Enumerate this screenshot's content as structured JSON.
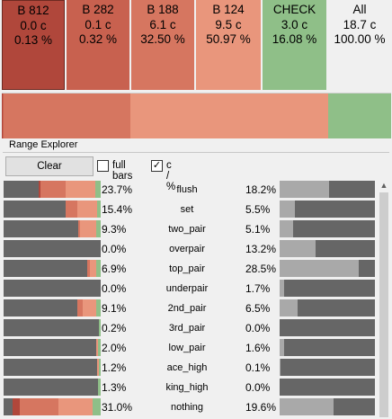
{
  "colors": {
    "b812": "#b0473b",
    "b282": "#c8614f",
    "b188": "#d67660",
    "b124": "#e9967c",
    "check": "#8fbf88",
    "all": "#f0f0f0",
    "dark_bar": "#666666",
    "light_bar": "#a9a9a9"
  },
  "actions": [
    {
      "name": "B 812",
      "value": "0.0 c",
      "pct": "0.13 %",
      "color": "#b0473b",
      "fg": "#000000"
    },
    {
      "name": "B 282",
      "value": "0.1 c",
      "pct": "0.32 %",
      "color": "#c8614f",
      "fg": "#000000"
    },
    {
      "name": "B 188",
      "value": "6.1 c",
      "pct": "32.50 %",
      "color": "#d67660",
      "fg": "#000000"
    },
    {
      "name": "B 124",
      "value": "9.5 c",
      "pct": "50.97 %",
      "color": "#e9967c",
      "fg": "#000000"
    },
    {
      "name": "CHECK",
      "value": "3.0 c",
      "pct": "16.08 %",
      "color": "#8fbf88",
      "fg": "#000000"
    },
    {
      "name": "All",
      "value": "18.7 c",
      "pct": "100.00 %",
      "color": "#f0f0f0",
      "fg": "#000000"
    }
  ],
  "composite": [
    {
      "action": "B 812",
      "fraction": 0.0013,
      "color": "#b0473b"
    },
    {
      "action": "B 282",
      "fraction": 0.0032,
      "color": "#c8614f"
    },
    {
      "action": "B 188",
      "fraction": 0.325,
      "color": "#d67660"
    },
    {
      "action": "B 124",
      "fraction": 0.5097,
      "color": "#e9967c"
    },
    {
      "action": "CHECK",
      "fraction": 0.1608,
      "color": "#8fbf88"
    }
  ],
  "range_explorer": {
    "title": "Range Explorer",
    "clear_label": "Clear",
    "full_bars": {
      "label": "full bars",
      "checked": false
    },
    "c_pct": {
      "label": "c / %",
      "checked": true
    }
  },
  "hands": [
    {
      "name": "flush",
      "left_pct": "23.7%",
      "right_pct": "18.2%",
      "left_frac": 0.237,
      "right_frac": 0.52,
      "segments": [
        {
          "color": "#8fbf88",
          "frac": 0.06
        },
        {
          "color": "#e9967c",
          "frac": 0.3
        },
        {
          "color": "#d67660",
          "frac": 0.26
        },
        {
          "color": "#b0473b",
          "frac": 0.02
        }
      ]
    },
    {
      "name": "set",
      "left_pct": "15.4%",
      "right_pct": "5.5%",
      "left_frac": 0.154,
      "right_frac": 0.16,
      "segments": [
        {
          "color": "#8fbf88",
          "frac": 0.04
        },
        {
          "color": "#e9967c",
          "frac": 0.2
        },
        {
          "color": "#d67660",
          "frac": 0.12
        }
      ]
    },
    {
      "name": "two_pair",
      "left_pct": "9.3%",
      "right_pct": "5.1%",
      "left_frac": 0.093,
      "right_frac": 0.14,
      "segments": [
        {
          "color": "#8fbf88",
          "frac": 0.05
        },
        {
          "color": "#e9967c",
          "frac": 0.16
        },
        {
          "color": "#d67660",
          "frac": 0.02
        }
      ]
    },
    {
      "name": "overpair",
      "left_pct": "0.0%",
      "right_pct": "13.2%",
      "left_frac": 0.0,
      "right_frac": 0.38,
      "segments": []
    },
    {
      "name": "top_pair",
      "left_pct": "6.9%",
      "right_pct": "28.5%",
      "left_frac": 0.069,
      "right_frac": 0.83,
      "segments": [
        {
          "color": "#8fbf88",
          "frac": 0.05
        },
        {
          "color": "#e9967c",
          "frac": 0.06
        },
        {
          "color": "#d67660",
          "frac": 0.03
        }
      ]
    },
    {
      "name": "underpair",
      "left_pct": "0.0%",
      "right_pct": "1.7%",
      "left_frac": 0.0,
      "right_frac": 0.05,
      "segments": []
    },
    {
      "name": "2nd_pair",
      "left_pct": "9.1%",
      "right_pct": "6.5%",
      "left_frac": 0.091,
      "right_frac": 0.19,
      "segments": [
        {
          "color": "#8fbf88",
          "frac": 0.05
        },
        {
          "color": "#e9967c",
          "frac": 0.14
        },
        {
          "color": "#d67660",
          "frac": 0.05
        }
      ]
    },
    {
      "name": "3rd_pair",
      "left_pct": "0.2%",
      "right_pct": "0.0%",
      "left_frac": 0.002,
      "right_frac": 0.0,
      "segments": [
        {
          "color": "#8fbf88",
          "frac": 0.02
        }
      ]
    },
    {
      "name": "low_pair",
      "left_pct": "2.0%",
      "right_pct": "1.6%",
      "left_frac": 0.02,
      "right_frac": 0.05,
      "segments": [
        {
          "color": "#8fbf88",
          "frac": 0.03
        },
        {
          "color": "#e9967c",
          "frac": 0.02
        }
      ]
    },
    {
      "name": "ace_high",
      "left_pct": "1.2%",
      "right_pct": "0.1%",
      "left_frac": 0.012,
      "right_frac": 0.01,
      "segments": [
        {
          "color": "#8fbf88",
          "frac": 0.02
        },
        {
          "color": "#e9967c",
          "frac": 0.02
        }
      ]
    },
    {
      "name": "king_high",
      "left_pct": "1.3%",
      "right_pct": "0.0%",
      "left_frac": 0.013,
      "right_frac": 0.0,
      "segments": [
        {
          "color": "#8fbf88",
          "frac": 0.03
        }
      ]
    },
    {
      "name": "nothing",
      "left_pct": "31.0%",
      "right_pct": "19.6%",
      "left_frac": 0.31,
      "right_frac": 0.57,
      "segments": [
        {
          "color": "#8fbf88",
          "frac": 0.08
        },
        {
          "color": "#e9967c",
          "frac": 0.36
        },
        {
          "color": "#d67660",
          "frac": 0.39
        },
        {
          "color": "#b0473b",
          "frac": 0.08
        }
      ]
    }
  ]
}
